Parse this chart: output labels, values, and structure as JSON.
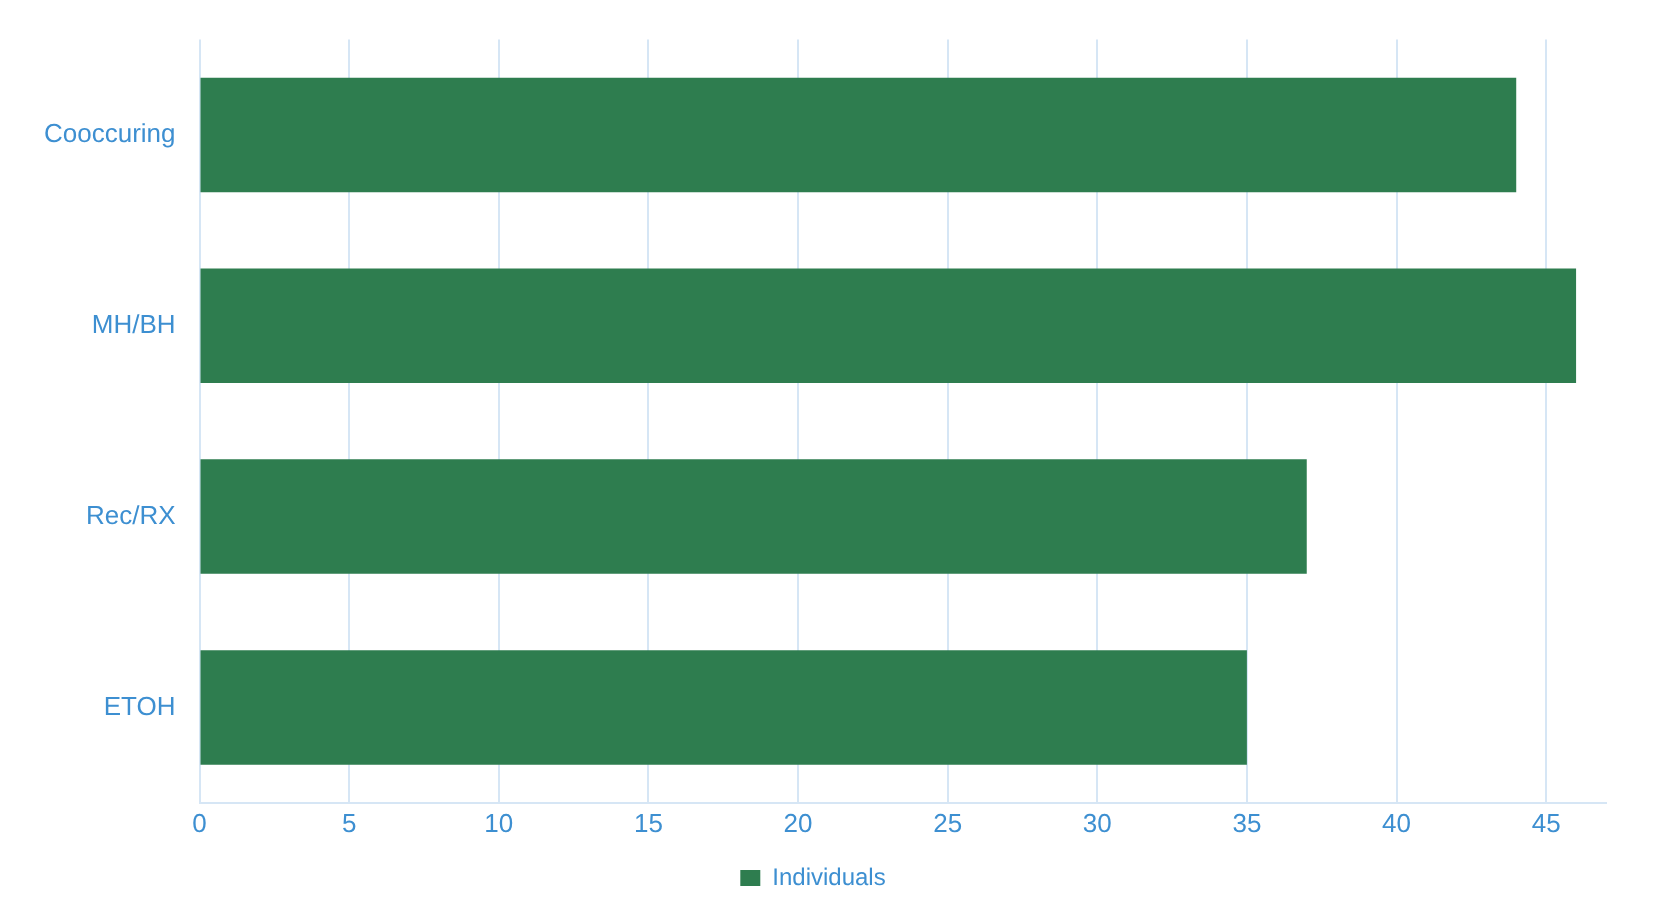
{
  "chart_data": {
    "type": "bar",
    "orientation": "horizontal",
    "categories": [
      "Cooccuring",
      "MH/BH",
      "Rec/RX",
      "ETOH"
    ],
    "series": [
      {
        "name": "Individuals",
        "color": "#2e7d4f",
        "values": [
          44,
          46,
          37,
          35
        ]
      }
    ],
    "xlim": [
      0,
      47
    ],
    "xticks": [
      0,
      5,
      10,
      15,
      20,
      25,
      30,
      35,
      40,
      45
    ],
    "grid": "x",
    "legend": "bottom"
  }
}
